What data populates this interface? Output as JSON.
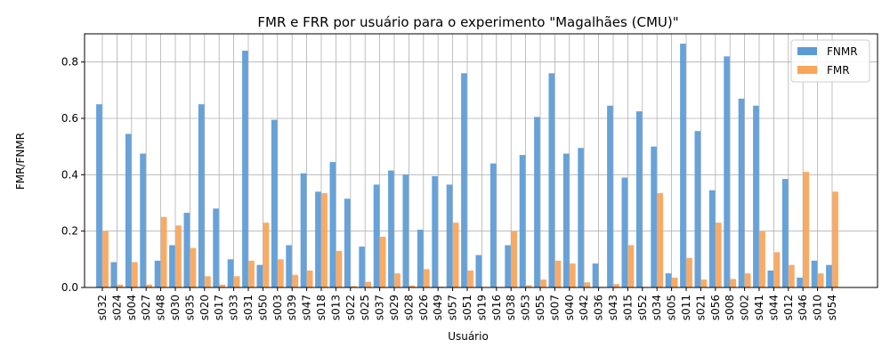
{
  "chart_data": {
    "type": "bar",
    "title": "FMR e FRR por usuário para o experimento \"Magalhães (CMU)\"",
    "xlabel": "Usuário",
    "ylabel": "FMR/FNMR",
    "ylim": [
      0,
      0.9
    ],
    "yticks": [
      "0.0",
      "0.2",
      "0.4",
      "0.6",
      "0.8"
    ],
    "grid": true,
    "legend_position": "top-right",
    "categories": [
      "s032",
      "s024",
      "s004",
      "s027",
      "s048",
      "s030",
      "s035",
      "s020",
      "s017",
      "s033",
      "s031",
      "s050",
      "s003",
      "s039",
      "s047",
      "s018",
      "s013",
      "s022",
      "s025",
      "s037",
      "s029",
      "s028",
      "s026",
      "s049",
      "s057",
      "s051",
      "s019",
      "s016",
      "s038",
      "s053",
      "s055",
      "s007",
      "s040",
      "s042",
      "s036",
      "s043",
      "s015",
      "s052",
      "s034",
      "s005",
      "s011",
      "s021",
      "s056",
      "s008",
      "s002",
      "s041",
      "s044",
      "s012",
      "s046",
      "s010",
      "s054"
    ],
    "series": [
      {
        "name": "FNMR",
        "color": "#5b9bd5",
        "values": [
          0.65,
          0.09,
          0.545,
          0.475,
          0.095,
          0.15,
          0.265,
          0.65,
          0.28,
          0.1,
          0.84,
          0.08,
          0.595,
          0.15,
          0.405,
          0.34,
          0.445,
          0.315,
          0.145,
          0.365,
          0.415,
          0.4,
          0.205,
          0.395,
          0.365,
          0.76,
          0.115,
          0.44,
          0.15,
          0.47,
          0.605,
          0.76,
          0.475,
          0.495,
          0.085,
          0.645,
          0.39,
          0.625,
          0.5,
          0.05,
          0.865,
          0.555,
          0.345,
          0.82,
          0.67,
          0.645,
          0.06,
          0.385,
          0.035,
          0.095,
          0.08
        ]
      },
      {
        "name": "FMR",
        "color": "#f9a55a",
        "values": [
          0.2,
          0.01,
          0.09,
          0.01,
          0.25,
          0.22,
          0.14,
          0.04,
          0.01,
          0.04,
          0.095,
          0.23,
          0.1,
          0.045,
          0.06,
          0.335,
          0.13,
          0.005,
          0.02,
          0.18,
          0.05,
          0.007,
          0.065,
          0.003,
          0.23,
          0.06,
          0.002,
          0.002,
          0.2,
          0.008,
          0.028,
          0.095,
          0.085,
          0.018,
          0.002,
          0.012,
          0.15,
          0.002,
          0.335,
          0.035,
          0.105,
          0.028,
          0.23,
          0.03,
          0.05,
          0.2,
          0.125,
          0.08,
          0.41,
          0.05,
          0.34
        ]
      }
    ]
  }
}
